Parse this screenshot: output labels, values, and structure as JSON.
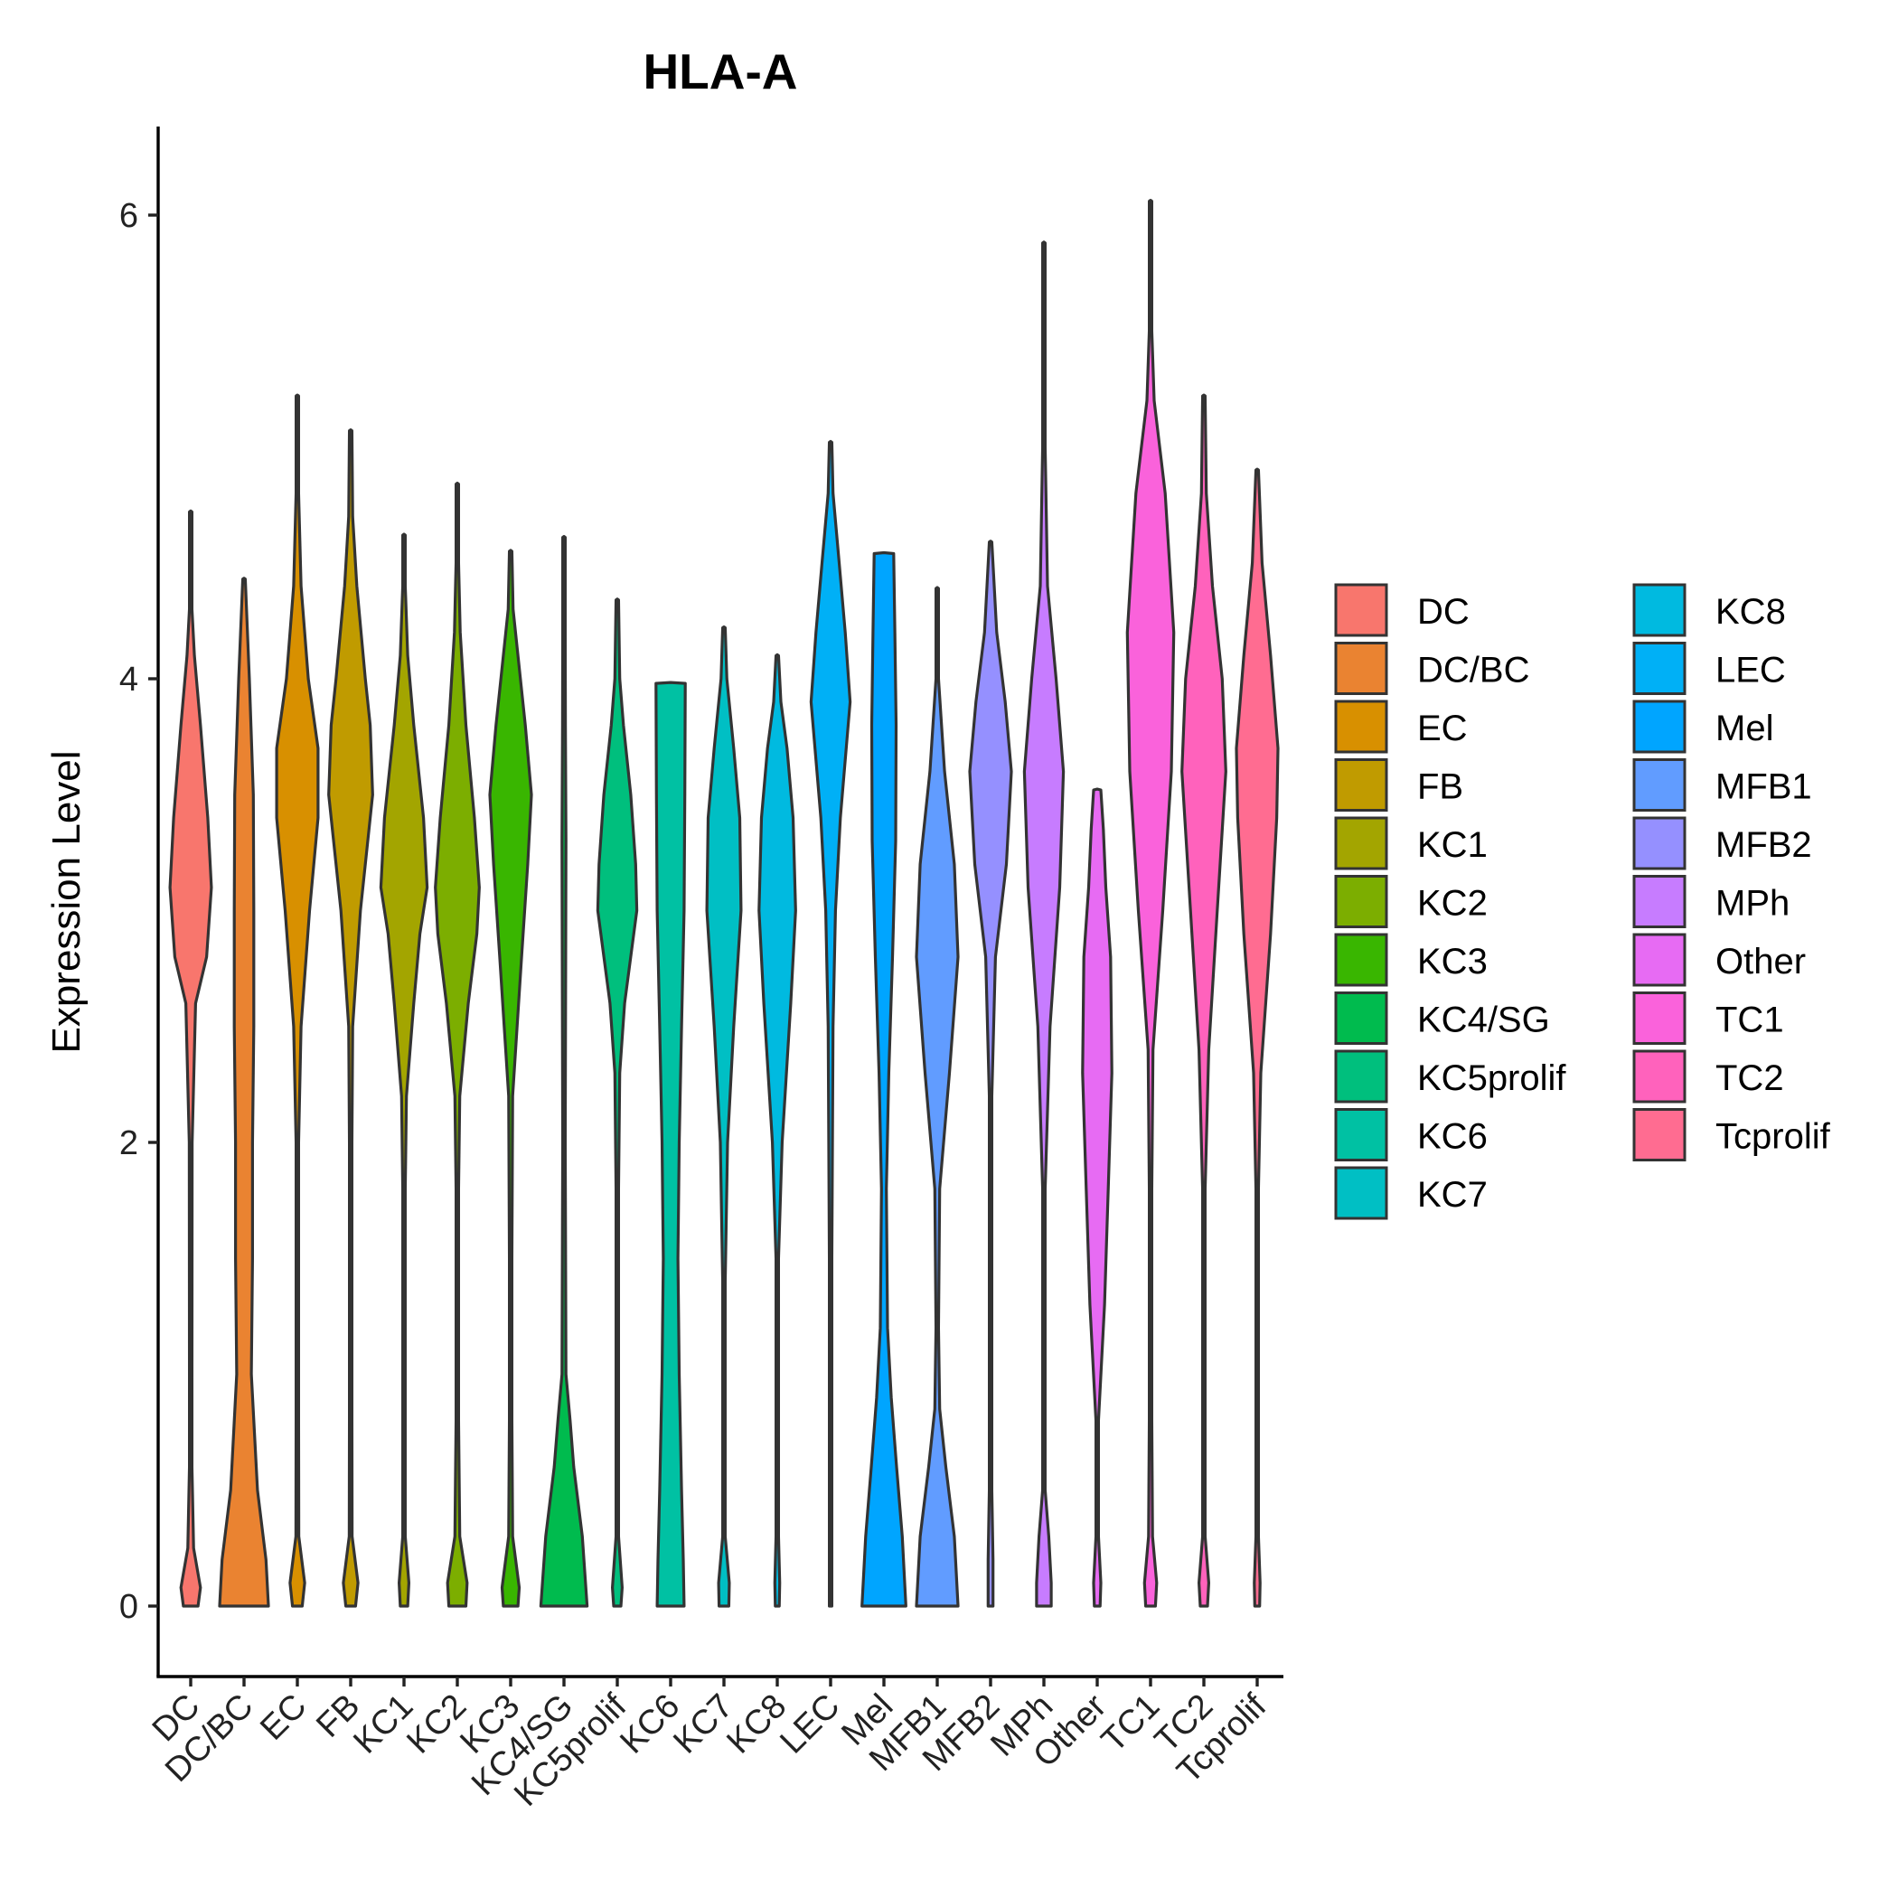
{
  "chart_data": {
    "type": "violin",
    "title": "HLA-A",
    "xlabel": "",
    "ylabel": "Expression Level",
    "ylim": [
      -0.3,
      6.4
    ],
    "yticks": [
      0,
      2,
      4,
      6
    ],
    "legend_position": "right",
    "categories": [
      "DC",
      "DC/BC",
      "EC",
      "FB",
      "KC1",
      "KC2",
      "KC3",
      "KC4/SG",
      "KC5prolif",
      "KC6",
      "KC7",
      "KC8",
      "LEC",
      "Mel",
      "MFB1",
      "MFB2",
      "MPh",
      "Other",
      "TC1",
      "TC2",
      "Tcprolif"
    ],
    "colors": [
      "#F8766D",
      "#EA8331",
      "#D89000",
      "#C09B00",
      "#A3A500",
      "#7CAE00",
      "#39B600",
      "#00BB4E",
      "#00BF7D",
      "#00C1A3",
      "#00BFC4",
      "#00BAE0",
      "#00B0F6",
      "#00A5FF",
      "#619CFF",
      "#9590FF",
      "#C77CFF",
      "#E76BF3",
      "#FA62DB",
      "#FF62BC",
      "#FF6C91"
    ],
    "series": [
      {
        "name": "DC",
        "max": 4.72,
        "profile": [
          [
            0,
            0.3
          ],
          [
            0.08,
            0.4
          ],
          [
            0.25,
            0.12
          ],
          [
            0.6,
            0.01
          ],
          [
            1.0,
            0.03
          ],
          [
            2.0,
            0.06
          ],
          [
            2.6,
            0.2
          ],
          [
            2.8,
            0.65
          ],
          [
            3.1,
            0.85
          ],
          [
            3.4,
            0.7
          ],
          [
            3.8,
            0.4
          ],
          [
            4.1,
            0.15
          ],
          [
            4.3,
            0.05
          ],
          [
            4.72,
            0.01
          ]
        ]
      },
      {
        "name": "DC/BC",
        "max": 4.43,
        "profile": [
          [
            0,
            1.0
          ],
          [
            0.2,
            0.9
          ],
          [
            0.5,
            0.55
          ],
          [
            1.0,
            0.3
          ],
          [
            1.5,
            0.35
          ],
          [
            2.0,
            0.35
          ],
          [
            2.5,
            0.4
          ],
          [
            3.0,
            0.4
          ],
          [
            3.5,
            0.38
          ],
          [
            4.0,
            0.22
          ],
          [
            4.43,
            0.01
          ]
        ]
      },
      {
        "name": "EC",
        "max": 5.22,
        "profile": [
          [
            0,
            0.2
          ],
          [
            0.1,
            0.3
          ],
          [
            0.3,
            0.06
          ],
          [
            0.8,
            0.01
          ],
          [
            1.5,
            0.02
          ],
          [
            2.0,
            0.04
          ],
          [
            2.5,
            0.15
          ],
          [
            3.0,
            0.5
          ],
          [
            3.4,
            0.85
          ],
          [
            3.7,
            0.85
          ],
          [
            4.0,
            0.45
          ],
          [
            4.4,
            0.15
          ],
          [
            4.8,
            0.04
          ],
          [
            5.22,
            0.01
          ]
        ]
      },
      {
        "name": "FB",
        "max": 5.07,
        "profile": [
          [
            0,
            0.2
          ],
          [
            0.1,
            0.3
          ],
          [
            0.3,
            0.06
          ],
          [
            0.8,
            0.01
          ],
          [
            2.0,
            0.02
          ],
          [
            2.5,
            0.08
          ],
          [
            3.0,
            0.4
          ],
          [
            3.5,
            0.9
          ],
          [
            3.8,
            0.8
          ],
          [
            4.0,
            0.6
          ],
          [
            4.4,
            0.25
          ],
          [
            4.7,
            0.08
          ],
          [
            5.07,
            0.01
          ]
        ]
      },
      {
        "name": "KC1",
        "max": 4.62,
        "profile": [
          [
            0,
            0.15
          ],
          [
            0.1,
            0.2
          ],
          [
            0.3,
            0.04
          ],
          [
            0.8,
            0.01
          ],
          [
            1.8,
            0.02
          ],
          [
            2.2,
            0.1
          ],
          [
            2.6,
            0.4
          ],
          [
            2.9,
            0.65
          ],
          [
            3.1,
            0.95
          ],
          [
            3.4,
            0.8
          ],
          [
            3.8,
            0.4
          ],
          [
            4.1,
            0.15
          ],
          [
            4.4,
            0.04
          ],
          [
            4.62,
            0.01
          ]
        ]
      },
      {
        "name": "KC2",
        "max": 4.84,
        "profile": [
          [
            0,
            0.35
          ],
          [
            0.1,
            0.4
          ],
          [
            0.3,
            0.1
          ],
          [
            0.8,
            0.01
          ],
          [
            1.8,
            0.02
          ],
          [
            2.2,
            0.1
          ],
          [
            2.6,
            0.45
          ],
          [
            2.9,
            0.8
          ],
          [
            3.1,
            0.9
          ],
          [
            3.4,
            0.7
          ],
          [
            3.8,
            0.35
          ],
          [
            4.2,
            0.12
          ],
          [
            4.5,
            0.04
          ],
          [
            4.84,
            0.01
          ]
        ]
      },
      {
        "name": "KC3",
        "max": 4.55,
        "profile": [
          [
            0,
            0.3
          ],
          [
            0.08,
            0.35
          ],
          [
            0.3,
            0.08
          ],
          [
            0.8,
            0.01
          ],
          [
            1.5,
            0.02
          ],
          [
            2.2,
            0.08
          ],
          [
            2.8,
            0.45
          ],
          [
            3.2,
            0.7
          ],
          [
            3.5,
            0.85
          ],
          [
            3.8,
            0.6
          ],
          [
            4.1,
            0.3
          ],
          [
            4.3,
            0.1
          ],
          [
            4.55,
            0.01
          ]
        ]
      },
      {
        "name": "KC4/SG",
        "max": 4.61,
        "profile": [
          [
            0,
            0.95
          ],
          [
            0.3,
            0.75
          ],
          [
            0.6,
            0.4
          ],
          [
            0.8,
            0.25
          ],
          [
            1.0,
            0.08
          ],
          [
            2.0,
            0.04
          ],
          [
            2.8,
            0.07
          ],
          [
            3.3,
            0.08
          ],
          [
            3.8,
            0.06
          ],
          [
            4.2,
            0.03
          ],
          [
            4.61,
            0.01
          ]
        ]
      },
      {
        "name": "KC5prolif",
        "max": 4.34,
        "profile": [
          [
            0,
            0.15
          ],
          [
            0.08,
            0.2
          ],
          [
            0.3,
            0.04
          ],
          [
            0.8,
            0.01
          ],
          [
            1.8,
            0.02
          ],
          [
            2.3,
            0.1
          ],
          [
            2.6,
            0.3
          ],
          [
            3.0,
            0.8
          ],
          [
            3.2,
            0.75
          ],
          [
            3.5,
            0.55
          ],
          [
            3.8,
            0.25
          ],
          [
            4.0,
            0.1
          ],
          [
            4.34,
            0.01
          ]
        ]
      },
      {
        "name": "KC6",
        "max": 3.98,
        "profile": [
          [
            0,
            0.55
          ],
          [
            0.2,
            0.52
          ],
          [
            0.5,
            0.45
          ],
          [
            1.0,
            0.35
          ],
          [
            1.5,
            0.3
          ],
          [
            2.0,
            0.35
          ],
          [
            2.5,
            0.45
          ],
          [
            3.0,
            0.55
          ],
          [
            3.5,
            0.58
          ],
          [
            3.98,
            0.6
          ]
        ]
      },
      {
        "name": "KC7",
        "max": 4.22,
        "profile": [
          [
            0,
            0.2
          ],
          [
            0.1,
            0.22
          ],
          [
            0.3,
            0.05
          ],
          [
            0.8,
            0.02
          ],
          [
            1.4,
            0.05
          ],
          [
            2.0,
            0.15
          ],
          [
            2.5,
            0.4
          ],
          [
            3.0,
            0.7
          ],
          [
            3.4,
            0.65
          ],
          [
            3.7,
            0.4
          ],
          [
            4.0,
            0.12
          ],
          [
            4.22,
            0.01
          ]
        ]
      },
      {
        "name": "KC8",
        "max": 4.1,
        "profile": [
          [
            0,
            0.08
          ],
          [
            0.1,
            0.1
          ],
          [
            0.3,
            0.04
          ],
          [
            0.8,
            0.02
          ],
          [
            1.5,
            0.05
          ],
          [
            2.0,
            0.2
          ],
          [
            2.6,
            0.55
          ],
          [
            3.0,
            0.75
          ],
          [
            3.4,
            0.65
          ],
          [
            3.7,
            0.4
          ],
          [
            3.9,
            0.15
          ],
          [
            4.1,
            0.01
          ]
        ]
      },
      {
        "name": "LEC",
        "max": 5.02,
        "profile": [
          [
            0,
            0.04
          ],
          [
            0.5,
            0.04
          ],
          [
            1.5,
            0.04
          ],
          [
            2.5,
            0.1
          ],
          [
            3.0,
            0.2
          ],
          [
            3.4,
            0.4
          ],
          [
            3.9,
            0.8
          ],
          [
            4.2,
            0.6
          ],
          [
            4.5,
            0.35
          ],
          [
            4.8,
            0.1
          ],
          [
            5.02,
            0.01
          ]
        ]
      },
      {
        "name": "Mel",
        "max": 4.54,
        "profile": [
          [
            0,
            0.9
          ],
          [
            0.3,
            0.75
          ],
          [
            0.6,
            0.52
          ],
          [
            0.9,
            0.3
          ],
          [
            1.2,
            0.15
          ],
          [
            1.8,
            0.1
          ],
          [
            2.3,
            0.2
          ],
          [
            2.8,
            0.35
          ],
          [
            3.3,
            0.48
          ],
          [
            3.8,
            0.5
          ],
          [
            4.2,
            0.45
          ],
          [
            4.54,
            0.4
          ]
        ]
      },
      {
        "name": "MFB1",
        "max": 4.39,
        "profile": [
          [
            0,
            0.85
          ],
          [
            0.3,
            0.7
          ],
          [
            0.6,
            0.35
          ],
          [
            0.85,
            0.1
          ],
          [
            1.2,
            0.03
          ],
          [
            1.8,
            0.1
          ],
          [
            2.3,
            0.5
          ],
          [
            2.8,
            0.85
          ],
          [
            3.2,
            0.7
          ],
          [
            3.6,
            0.3
          ],
          [
            4.0,
            0.05
          ],
          [
            4.39,
            0.01
          ]
        ]
      },
      {
        "name": "MFB2",
        "max": 4.59,
        "profile": [
          [
            0,
            0.1
          ],
          [
            0.2,
            0.1
          ],
          [
            0.5,
            0.02
          ],
          [
            1.5,
            0.01
          ],
          [
            2.2,
            0.05
          ],
          [
            2.8,
            0.2
          ],
          [
            3.2,
            0.65
          ],
          [
            3.6,
            0.85
          ],
          [
            3.9,
            0.6
          ],
          [
            4.2,
            0.25
          ],
          [
            4.59,
            0.01
          ]
        ]
      },
      {
        "name": "MPh",
        "max": 5.88,
        "profile": [
          [
            0,
            0.3
          ],
          [
            0.1,
            0.3
          ],
          [
            0.3,
            0.2
          ],
          [
            0.5,
            0.05
          ],
          [
            1.0,
            0.01
          ],
          [
            1.8,
            0.05
          ],
          [
            2.5,
            0.25
          ],
          [
            3.1,
            0.65
          ],
          [
            3.6,
            0.8
          ],
          [
            4.0,
            0.5
          ],
          [
            4.4,
            0.15
          ],
          [
            5.0,
            0.03
          ],
          [
            5.88,
            0.01
          ]
        ]
      },
      {
        "name": "Other",
        "max": 3.52,
        "profile": [
          [
            0,
            0.12
          ],
          [
            0.1,
            0.15
          ],
          [
            0.3,
            0.05
          ],
          [
            0.8,
            0.05
          ],
          [
            1.3,
            0.3
          ],
          [
            1.8,
            0.45
          ],
          [
            2.3,
            0.6
          ],
          [
            2.8,
            0.55
          ],
          [
            3.1,
            0.35
          ],
          [
            3.35,
            0.25
          ],
          [
            3.52,
            0.15
          ]
        ]
      },
      {
        "name": "TC1",
        "max": 6.06,
        "profile": [
          [
            0,
            0.2
          ],
          [
            0.1,
            0.25
          ],
          [
            0.3,
            0.08
          ],
          [
            0.8,
            0.01
          ],
          [
            1.8,
            0.01
          ],
          [
            2.4,
            0.1
          ],
          [
            3.0,
            0.5
          ],
          [
            3.6,
            0.85
          ],
          [
            4.2,
            0.95
          ],
          [
            4.8,
            0.6
          ],
          [
            5.2,
            0.15
          ],
          [
            5.5,
            0.04
          ],
          [
            6.06,
            0.01
          ]
        ]
      },
      {
        "name": "TC2",
        "max": 5.22,
        "profile": [
          [
            0,
            0.15
          ],
          [
            0.1,
            0.2
          ],
          [
            0.3,
            0.05
          ],
          [
            0.8,
            0.01
          ],
          [
            1.8,
            0.02
          ],
          [
            2.4,
            0.2
          ],
          [
            3.0,
            0.55
          ],
          [
            3.6,
            0.9
          ],
          [
            4.0,
            0.75
          ],
          [
            4.4,
            0.35
          ],
          [
            4.8,
            0.1
          ],
          [
            5.22,
            0.01
          ]
        ]
      },
      {
        "name": "Tcprolif",
        "max": 4.9,
        "profile": [
          [
            0,
            0.1
          ],
          [
            0.1,
            0.12
          ],
          [
            0.3,
            0.03
          ],
          [
            0.8,
            0.01
          ],
          [
            1.8,
            0.02
          ],
          [
            2.3,
            0.15
          ],
          [
            2.9,
            0.55
          ],
          [
            3.4,
            0.8
          ],
          [
            3.7,
            0.85
          ],
          [
            4.1,
            0.55
          ],
          [
            4.5,
            0.2
          ],
          [
            4.9,
            0.01
          ]
        ]
      }
    ]
  }
}
